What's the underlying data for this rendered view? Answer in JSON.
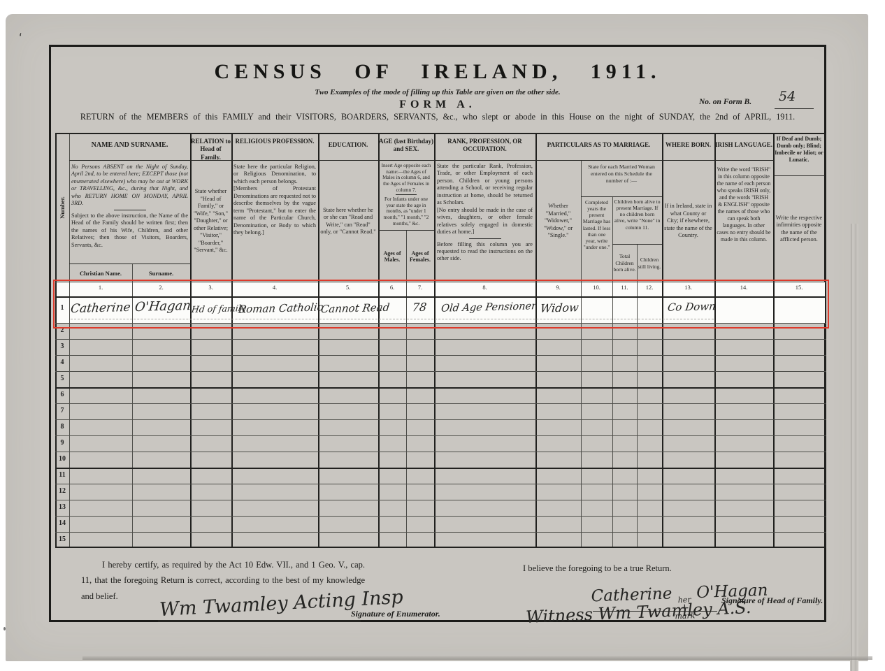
{
  "colors": {
    "paper": "#c9c6c1",
    "ink": "#1c1c1a",
    "highlight_red": "#dd3a2b"
  },
  "masthead": {
    "title": "CENSUS OF IRELAND, 1911.",
    "subtitle": "Two Examples of the mode of filling up this Table are given on the other side.",
    "form_name": "FORM A.",
    "form_no_label": "No. on Form B.",
    "form_no_value": "54",
    "return_line": "RETURN of the MEMBERS of this FAMILY and their VISITORS, BOARDERS, SERVANTS, &c., who slept or abode in this House on the night of SUNDAY, the 2nd of APRIL, 1911.",
    "pen_mark": "ʻ"
  },
  "table": {
    "number_col_label": "Number.",
    "column_numbers": [
      "1.",
      "2.",
      "3.",
      "4.",
      "5.",
      "6.",
      "7.",
      "8.",
      "9.",
      "10.",
      "11.",
      "12.",
      "13.",
      "14.",
      "15."
    ],
    "row_numbers": [
      "1",
      "2",
      "3",
      "4",
      "5",
      "6",
      "7",
      "8",
      "9",
      "10",
      "11",
      "12",
      "13",
      "14",
      "15"
    ],
    "headers": {
      "name_title": "NAME AND SURNAME.",
      "name_instruction_1": "No Persons ABSENT on the Night of Sunday, April 2nd, to be entered here; EXCEPT those (not enumerated elsewhere) who may be out at WORK or TRAVELLING, &c., during that Night, and who RETURN HOME ON MONDAY, APRIL 3RD.",
      "name_instruction_2": "Subject to the above instruction, the Name of the Head of the Family should be written first; then the names of his Wife, Children, and other Relatives; then those of Visitors, Boarders, Servants, &c.",
      "christian_name": "Christian Name.",
      "surname": "Surname.",
      "relation_title": "RELATION to Head of Family.",
      "relation_instruction": "State whether \"Head of Family,\" or \"Wife,\" \"Son,\" \"Daughter,\" or other Relative; \"Visitor,\" \"Boarder,\" \"Servant,\" &c.",
      "religion_title": "RELIGIOUS PROFESSION.",
      "religion_instruction_1": "State here the particular Religion, or Religious Denomination, to which each person belongs.",
      "religion_instruction_2": "[Members of Protestant Denominations are requested not to describe themselves by the vague term \"Protestant,\" but to enter the name of the Particular Church, Denomination, or Body to which they belong.]",
      "education_title": "EDUCATION.",
      "education_instruction": "State here whether he or she can \"Read and Write,\" can \"Read\" only, or \"Cannot Read.\"",
      "age_title": "AGE (last Birthday) and SEX.",
      "age_instruction_1": "Insert Age opposite each name:—the Ages of Males in column 6, and the Ages of Females in column 7.",
      "age_instruction_2": "For Infants under one year state the age in months, as \"under 1 month,\" \"1 month,\" \"2 months,\" &c.",
      "ages_males": "Ages of Males.",
      "ages_females": "Ages of Females.",
      "rank_title": "RANK, PROFESSION, OR OCCUPATION.",
      "rank_instruction_1": "State the particular Rank, Profession, Trade, or other Employment of each person. Children or young persons attending a School, or receiving regular instruction at home, should be returned as Scholars.",
      "rank_instruction_2": "[No entry should be made in the case of wives, daughters, or other female relatives solely engaged in domestic duties at home.]",
      "rank_instruction_3": "Before filling this column you are requested to read the instructions on the other side.",
      "marriage_title": "PARTICULARS AS TO MARRIAGE.",
      "marriage_status_instruction": "Whether \"Married,\" \"Widower,\" \"Widow,\" or \"Single.\"",
      "married_woman_note": "State for each Married Woman entered on this Schedule the number of :—",
      "years_married_instruction": "Completed years the present Marriage has lasted. If less than one year, write \"under one.\"",
      "children_note": "Children born alive to present Marriage. If no children born alive, write \"None\" in column 11.",
      "children_total": "Total Children born alive.",
      "children_living": "Children still living.",
      "born_title": "WHERE BORN.",
      "born_instruction": "If in Ireland, state in what County or City; if elsewhere, state the name of the Country.",
      "irish_title": "IRISH LANGUAGE.",
      "irish_instruction": "Write the word \"IRISH\" in this column opposite the name of each person who speaks IRISH only, and the words \"IRISH & ENGLISH\" opposite the names of those who can speak both languages. In other cases no entry should be made in this column.",
      "infirmity_title": "If Deaf and Dumb; Dumb only; Blind; Imbecile or Idiot; or Lunatic.",
      "infirmity_instruction": "Write the respective infirmities opposite the name of the afflicted person."
    },
    "row1": {
      "number": "1",
      "christian_name": "Catherine",
      "surname": "O'Hagan",
      "relation": "Hd of family",
      "religion": "Roman Catholic",
      "education": "Cannot Read",
      "age_female": "78",
      "occupation": "Old Age Pensioner",
      "marriage": "Widow",
      "where_born": "Co Down"
    }
  },
  "footer": {
    "certify_text": "I hereby certify, as required by the Act 10 Edw. VII., and 1 Geo. V., cap. 11, that the foregoing Return is correct, according to the best of my knowledge and belief.",
    "enumerator_signature": "Wm Twamley Acting Insp",
    "enumerator_label": "Signature of Enumerator.",
    "believe_text": "I believe the foregoing to be a true Return.",
    "head_signature_first": "Catherine",
    "head_signature_mark_top": "her",
    "head_signature_mark": "+",
    "head_signature_mark_bottom": "mark",
    "head_signature_last": "O'Hagan",
    "head_label": "Signature of Head of Family.",
    "witness_signature": "Witness Wm Twamley A.S."
  }
}
